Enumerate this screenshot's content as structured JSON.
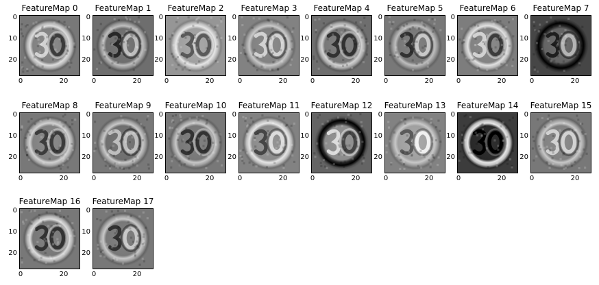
{
  "figure": {
    "panels": [
      {
        "title": "FeatureMap 0",
        "style": 0
      },
      {
        "title": "FeatureMap 1",
        "style": 1
      },
      {
        "title": "FeatureMap 2",
        "style": 2
      },
      {
        "title": "FeatureMap 3",
        "style": 3
      },
      {
        "title": "FeatureMap 4",
        "style": 4
      },
      {
        "title": "FeatureMap 5",
        "style": 5
      },
      {
        "title": "FeatureMap 6",
        "style": 6
      },
      {
        "title": "FeatureMap 7",
        "style": 7
      },
      {
        "title": "FeatureMap 8",
        "style": 8
      },
      {
        "title": "FeatureMap 9",
        "style": 9
      },
      {
        "title": "FeatureMap 10",
        "style": 10
      },
      {
        "title": "FeatureMap 11",
        "style": 11
      },
      {
        "title": "FeatureMap 12",
        "style": 12
      },
      {
        "title": "FeatureMap 13",
        "style": 13
      },
      {
        "title": "FeatureMap 14",
        "style": 14
      },
      {
        "title": "FeatureMap 15",
        "style": 15
      },
      {
        "title": "FeatureMap 16",
        "style": 16
      },
      {
        "title": "FeatureMap 17",
        "style": 17
      }
    ],
    "yticks": [
      "0",
      "10",
      "20"
    ],
    "xticks": [
      "0",
      "20"
    ],
    "colors": {
      "frame": "#000000",
      "background": "#ffffff"
    }
  }
}
